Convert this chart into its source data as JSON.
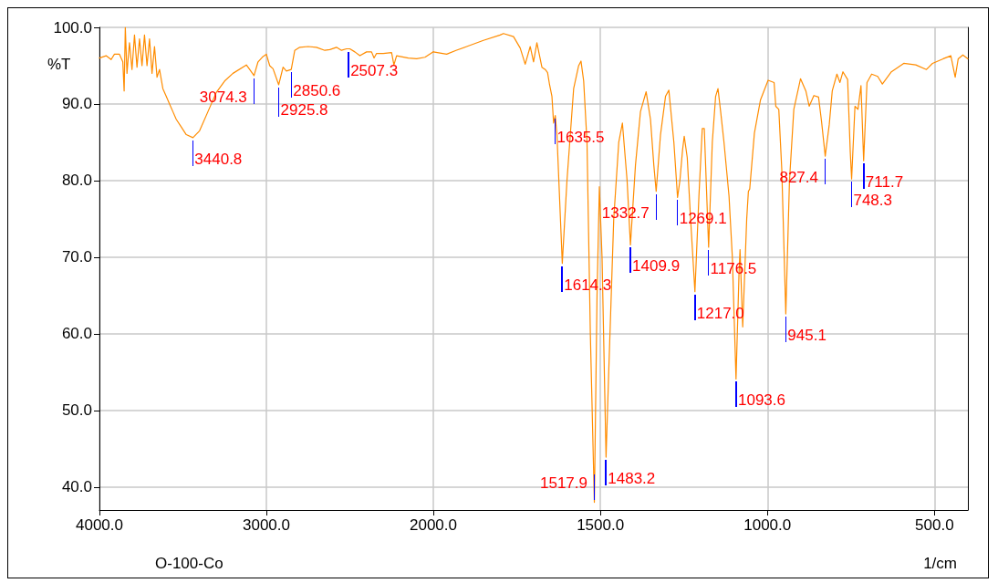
{
  "chart_data": [
    {
      "type": "line",
      "ylabel": "%T",
      "xlim": [
        4000,
        2000
      ],
      "ylim": [
        37,
        100
      ],
      "xticks": [
        {
          "value": 4000,
          "label": "4000.0"
        },
        {
          "value": 3000,
          "label": "3000.0"
        },
        {
          "value": 2000,
          "label": "2000.0"
        }
      ],
      "yticks": [
        {
          "value": 40,
          "label": "40.0"
        },
        {
          "value": 50,
          "label": "50.0"
        },
        {
          "value": 60,
          "label": "60.0"
        },
        {
          "value": 70,
          "label": "70.0"
        },
        {
          "value": 80,
          "label": "80.0"
        },
        {
          "value": 90,
          "label": "90.0"
        },
        {
          "value": 100,
          "label": "100.0"
        }
      ],
      "grid": true,
      "marker": "none",
      "line_style": "solid",
      "series": [
        {
          "color": "#ff8c00",
          "x": [
            4000,
            3960,
            3930,
            3910,
            3880,
            3860,
            3852,
            3845,
            3835,
            3820,
            3805,
            3790,
            3775,
            3760,
            3745,
            3730,
            3715,
            3700,
            3685,
            3670,
            3655,
            3640,
            3620,
            3600,
            3580,
            3560,
            3540,
            3510,
            3480,
            3440,
            3400,
            3350,
            3300,
            3250,
            3200,
            3120,
            3100,
            3074,
            3050,
            3020,
            3000,
            2980,
            2960,
            2926,
            2900,
            2880,
            2851,
            2830,
            2800,
            2750,
            2700,
            2650,
            2620,
            2580,
            2550,
            2520,
            2500,
            2470,
            2440,
            2400,
            2370,
            2355,
            2340,
            2300,
            2250,
            2236,
            2220,
            2150,
            2100,
            2050,
            2000
          ],
          "values": [
            96.0,
            96.3,
            95.8,
            96.5,
            96.5,
            95.5,
            91.7,
            100,
            94,
            98,
            94.5,
            99,
            94.8,
            98.5,
            95,
            99,
            95,
            98.5,
            94,
            97.5,
            93.5,
            94.5,
            92,
            91,
            90,
            89,
            88,
            87,
            86,
            85.6,
            86.5,
            89,
            91.5,
            93,
            94,
            95.1,
            94.5,
            93.7,
            95.5,
            96.2,
            96.5,
            95,
            94.6,
            92.5,
            94.8,
            94.3,
            94.5,
            97.0,
            97.4,
            97.5,
            97.4,
            97.0,
            97.1,
            97.4,
            97.0,
            97.2,
            97.2,
            96.8,
            96.3,
            96.8,
            96.8,
            96.0,
            96.6,
            96.6,
            96.7,
            95.1,
            96.3,
            96.0,
            95.9,
            96.1,
            96.8
          ]
        }
      ],
      "annotations": [
        {
          "text": "3440.8",
          "x": 3440.8,
          "y": 85.6
        },
        {
          "text": "3074.3",
          "x": 3074.3,
          "y": 93.7
        },
        {
          "text": "2925.8",
          "x": 2925.8,
          "y": 92.5
        },
        {
          "text": "2850.6",
          "x": 2850.6,
          "y": 94.5
        },
        {
          "text": "2507.3",
          "x": 2507.3,
          "y": 97.2
        },
        "O-100-Co"
      ]
    },
    {
      "type": "line",
      "xlabel": "1/cm",
      "xlim": [
        2000,
        400
      ],
      "ylim": [
        37,
        100
      ],
      "xticks": [
        {
          "value": 1500,
          "label": "1500.0"
        },
        {
          "value": 1000,
          "label": "1000.0"
        },
        {
          "value": 500,
          "label": "500.0"
        }
      ],
      "yticks": [
        40,
        50,
        60,
        70,
        80,
        90,
        100
      ],
      "tick_labels": "x",
      "grid": true,
      "marker": "none",
      "line_style": "solid",
      "series": [
        {
          "color": "#ff8c00",
          "x": [
            2000,
            1960,
            1932,
            1900,
            1850,
            1800,
            1790,
            1760,
            1740,
            1725,
            1710,
            1700,
            1690,
            1675,
            1665,
            1658,
            1652,
            1645,
            1640,
            1635,
            1630,
            1614,
            1600,
            1580,
            1565,
            1558,
            1550,
            1540,
            1530,
            1518,
            1510,
            1503,
            1495,
            1483,
            1475,
            1460,
            1445,
            1434,
            1420,
            1410,
            1395,
            1380,
            1363,
            1350,
            1340,
            1333,
            1320,
            1305,
            1295,
            1280,
            1269,
            1262,
            1254,
            1249,
            1240,
            1230,
            1217,
            1205,
            1195,
            1189,
            1176,
            1165,
            1155,
            1148,
            1140,
            1130,
            1115,
            1105,
            1094,
            1085,
            1082,
            1074,
            1062,
            1057,
            1053,
            1039,
            1021,
            998,
            980,
            975,
            966,
            957,
            945,
            934,
            921,
            901,
            885,
            875,
            861,
            847,
            838,
            827,
            815,
            806,
            792,
            783,
            774,
            760,
            752,
            748,
            738,
            729,
            720,
            712,
            702,
            688,
            670,
            656,
            629,
            592,
            556,
            524,
            506,
            474,
            451,
            438,
            429,
            415,
            400
          ],
          "values": [
            96.8,
            96.5,
            97.0,
            97.5,
            98.3,
            99.0,
            99.2,
            98.8,
            97.3,
            95.2,
            97.5,
            95.5,
            98.0,
            94.8,
            94.5,
            94.1,
            92.5,
            91,
            87.5,
            88.5,
            86,
            69.2,
            80,
            92,
            95,
            95.6,
            93,
            85,
            60,
            38.0,
            65,
            79.2,
            70,
            43.9,
            55,
            75,
            85,
            87.5,
            80,
            71.6,
            82,
            89,
            91.6,
            88,
            82,
            78.6,
            86,
            91,
            91.8,
            85,
            77.8,
            80,
            84.0,
            85.8,
            83,
            75,
            65.5,
            78,
            86.8,
            86.8,
            71.3,
            85,
            91,
            92.0,
            89,
            85,
            78,
            70,
            54.1,
            68,
            71.0,
            60.9,
            75,
            78.6,
            78.9,
            86.2,
            90.5,
            93.1,
            92.8,
            89.7,
            89.3,
            81.4,
            62.6,
            80,
            89.3,
            93.3,
            91.7,
            89.7,
            91.1,
            90.9,
            87.7,
            83.2,
            87.3,
            91.7,
            93.9,
            92.8,
            94.2,
            93.2,
            83.7,
            80.2,
            89.7,
            89.3,
            92.4,
            82.6,
            92.8,
            93.9,
            93.6,
            92.6,
            94.2,
            95.3,
            95.1,
            94.5,
            95.3,
            95.9,
            96.3,
            93.5,
            95.9,
            96.4,
            95.9
          ]
        }
      ],
      "annotations": [
        {
          "text": "1635.5",
          "x": 1635.5,
          "y": 88.5
        },
        {
          "text": "1614.3",
          "x": 1614.3,
          "y": 69.2
        },
        {
          "text": "1517.9",
          "x": 1517.9,
          "y": 38.0
        },
        {
          "text": "1483.2",
          "x": 1483.2,
          "y": 43.9
        },
        {
          "text": "1409.9",
          "x": 1409.9,
          "y": 71.6
        },
        {
          "text": "1332.7",
          "x": 1332.7,
          "y": 78.6
        },
        {
          "text": "1269.1",
          "x": 1269.1,
          "y": 77.8
        },
        {
          "text": "1217.0",
          "x": 1217.0,
          "y": 65.5
        },
        {
          "text": "1176.5",
          "x": 1176.5,
          "y": 71.3
        },
        {
          "text": "1093.6",
          "x": 1093.6,
          "y": 54.1
        },
        {
          "text": "945.1",
          "x": 945.1,
          "y": 62.6
        },
        {
          "text": "827.4",
          "x": 827.4,
          "y": 83.2
        },
        {
          "text": "748.3",
          "x": 748.3,
          "y": 80.2
        },
        {
          "text": "711.7",
          "x": 711.7,
          "y": 82.6
        }
      ]
    }
  ]
}
